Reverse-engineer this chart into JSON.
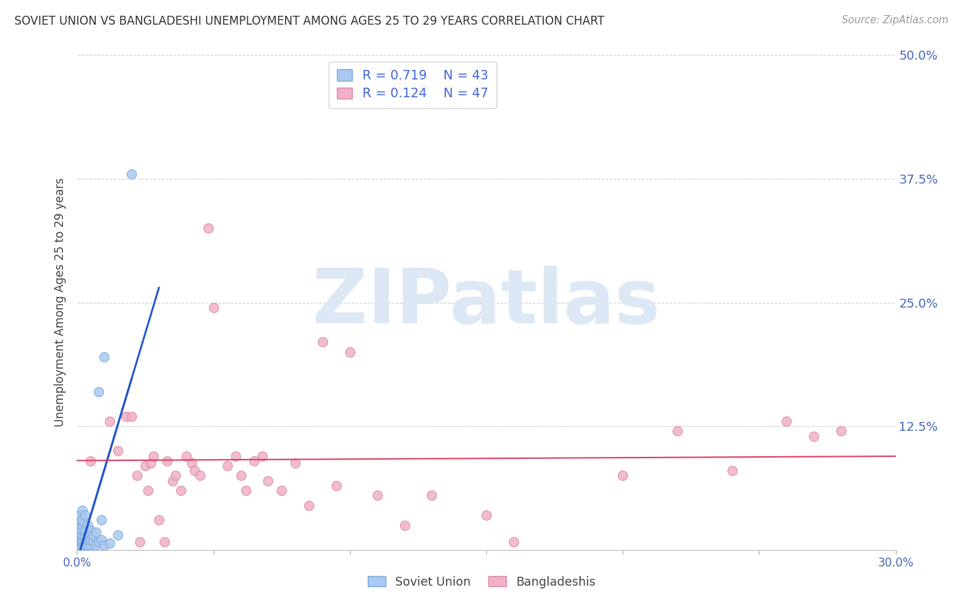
{
  "title": "SOVIET UNION VS BANGLADESHI UNEMPLOYMENT AMONG AGES 25 TO 29 YEARS CORRELATION CHART",
  "source": "Source: ZipAtlas.com",
  "ylabel": "Unemployment Among Ages 25 to 29 years",
  "xlim": [
    0.0,
    0.3
  ],
  "ylim": [
    0.0,
    0.5
  ],
  "yticks": [
    0.0,
    0.125,
    0.25,
    0.375,
    0.5
  ],
  "ytick_labels_right": [
    "",
    "12.5%",
    "25.0%",
    "37.5%",
    "50.0%"
  ],
  "xticks": [
    0.0,
    0.05,
    0.1,
    0.15,
    0.2,
    0.25,
    0.3
  ],
  "xtick_labels": [
    "0.0%",
    "",
    "",
    "",
    "",
    "",
    "30.0%"
  ],
  "bg_color": "#ffffff",
  "grid_color": "#d0d0d8",
  "soviet_color": "#aac8f0",
  "soviet_edge_color": "#7aaad8",
  "bangladeshi_color": "#f0b0c8",
  "bangladeshi_edge_color": "#d888a8",
  "trend_soviet_color": "#2255cc",
  "trend_bangladeshi_color": "#dd4466",
  "watermark_text": "ZIPatlas",
  "watermark_color": "#dde8f5",
  "legend_r_soviet": "R = 0.719",
  "legend_n_soviet": "N = 43",
  "legend_r_bangladeshi": "R = 0.124",
  "legend_n_bangladeshi": "N = 47",
  "legend_text_color": "#4466dd",
  "soviet_scatter_x": [
    0.001,
    0.001,
    0.001,
    0.001,
    0.001,
    0.001,
    0.001,
    0.001,
    0.001,
    0.001,
    0.002,
    0.002,
    0.002,
    0.002,
    0.002,
    0.002,
    0.002,
    0.002,
    0.003,
    0.003,
    0.003,
    0.003,
    0.003,
    0.004,
    0.004,
    0.004,
    0.004,
    0.005,
    0.005,
    0.005,
    0.006,
    0.006,
    0.007,
    0.007,
    0.008,
    0.008,
    0.009,
    0.009,
    0.01,
    0.01,
    0.012,
    0.015,
    0.02
  ],
  "soviet_scatter_y": [
    0.005,
    0.008,
    0.01,
    0.012,
    0.015,
    0.018,
    0.02,
    0.025,
    0.03,
    0.035,
    0.005,
    0.008,
    0.01,
    0.015,
    0.02,
    0.025,
    0.03,
    0.04,
    0.005,
    0.008,
    0.015,
    0.02,
    0.035,
    0.005,
    0.01,
    0.015,
    0.025,
    0.005,
    0.01,
    0.02,
    0.008,
    0.015,
    0.005,
    0.018,
    0.008,
    0.16,
    0.01,
    0.03,
    0.005,
    0.195,
    0.007,
    0.015,
    0.38
  ],
  "bangladeshi_scatter_x": [
    0.005,
    0.012,
    0.015,
    0.018,
    0.02,
    0.022,
    0.023,
    0.025,
    0.026,
    0.027,
    0.028,
    0.03,
    0.032,
    0.033,
    0.035,
    0.036,
    0.038,
    0.04,
    0.042,
    0.043,
    0.045,
    0.048,
    0.05,
    0.055,
    0.058,
    0.06,
    0.062,
    0.065,
    0.068,
    0.07,
    0.075,
    0.08,
    0.085,
    0.09,
    0.095,
    0.1,
    0.11,
    0.12,
    0.13,
    0.15,
    0.16,
    0.2,
    0.22,
    0.24,
    0.26,
    0.27,
    0.28
  ],
  "bangladeshi_scatter_y": [
    0.09,
    0.13,
    0.1,
    0.135,
    0.135,
    0.075,
    0.008,
    0.085,
    0.06,
    0.088,
    0.095,
    0.03,
    0.008,
    0.09,
    0.07,
    0.075,
    0.06,
    0.095,
    0.088,
    0.08,
    0.075,
    0.325,
    0.245,
    0.085,
    0.095,
    0.075,
    0.06,
    0.09,
    0.095,
    0.07,
    0.06,
    0.088,
    0.045,
    0.21,
    0.065,
    0.2,
    0.055,
    0.025,
    0.055,
    0.035,
    0.008,
    0.075,
    0.12,
    0.08,
    0.13,
    0.115,
    0.12
  ]
}
